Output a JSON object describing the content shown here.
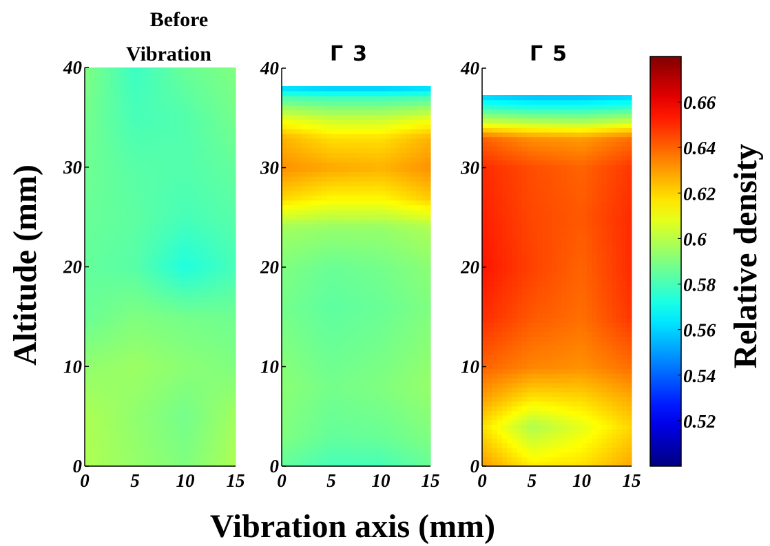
{
  "chart_data": {
    "type": "heatmap",
    "xlabel": "Vibration axis (mm)",
    "ylabel": "Altitude (mm)",
    "colorbar": {
      "label": "Relative density",
      "colormap": "jet",
      "range": [
        0.5,
        0.68
      ],
      "ticks": [
        "0.52",
        "0.54",
        "0.56",
        "0.58",
        "0.6",
        "0.62",
        "0.64",
        "0.66"
      ],
      "tick_values": [
        0.52,
        0.54,
        0.56,
        0.58,
        0.6,
        0.62,
        0.64,
        0.66
      ]
    },
    "panels": [
      {
        "title_lines": [
          "Before",
          "Vibration"
        ],
        "xlim": [
          0,
          15
        ],
        "ylim": [
          0,
          40
        ],
        "xticks": [
          "0",
          "5",
          "10",
          "15"
        ],
        "xtick_values": [
          0,
          5,
          10,
          15
        ],
        "yticks": [
          "0",
          "10",
          "20",
          "30",
          "40"
        ],
        "ytick_values": [
          0,
          10,
          20,
          30,
          40
        ],
        "fill_height": 40,
        "x": [
          0,
          5,
          10,
          15
        ],
        "y": [
          0,
          5,
          10,
          15,
          20,
          25,
          30,
          35,
          40
        ],
        "density": [
          [
            0.598,
            0.594,
            0.59,
            0.598
          ],
          [
            0.598,
            0.593,
            0.588,
            0.596
          ],
          [
            0.593,
            0.595,
            0.592,
            0.59
          ],
          [
            0.586,
            0.59,
            0.588,
            0.587
          ],
          [
            0.585,
            0.583,
            0.573,
            0.58
          ],
          [
            0.586,
            0.584,
            0.58,
            0.583
          ],
          [
            0.587,
            0.583,
            0.582,
            0.585
          ],
          [
            0.588,
            0.58,
            0.582,
            0.588
          ],
          [
            0.59,
            0.578,
            0.586,
            0.59
          ]
        ]
      },
      {
        "title_prefix": "Γ",
        "title_value": "3",
        "xlim": [
          0,
          15
        ],
        "ylim": [
          0,
          40
        ],
        "xticks": [
          "0",
          "5",
          "10",
          "15"
        ],
        "xtick_values": [
          0,
          5,
          10,
          15
        ],
        "yticks": [
          "0",
          "10",
          "20",
          "30",
          "40"
        ],
        "ytick_values": [
          0,
          10,
          20,
          30,
          40
        ],
        "fill_height": 38.2,
        "x": [
          0,
          5,
          10,
          15
        ],
        "y": [
          0,
          3,
          8,
          12,
          16,
          20,
          24,
          27,
          30,
          33,
          35,
          37,
          38.2
        ],
        "density": [
          [
            0.585,
            0.58,
            0.58,
            0.586
          ],
          [
            0.59,
            0.585,
            0.586,
            0.59
          ],
          [
            0.592,
            0.588,
            0.59,
            0.594
          ],
          [
            0.59,
            0.586,
            0.588,
            0.592
          ],
          [
            0.588,
            0.584,
            0.586,
            0.59
          ],
          [
            0.59,
            0.586,
            0.588,
            0.592
          ],
          [
            0.596,
            0.594,
            0.594,
            0.598
          ],
          [
            0.62,
            0.614,
            0.614,
            0.622
          ],
          [
            0.632,
            0.628,
            0.626,
            0.632
          ],
          [
            0.626,
            0.618,
            0.618,
            0.626
          ],
          [
            0.608,
            0.602,
            0.602,
            0.608
          ],
          [
            0.582,
            0.58,
            0.58,
            0.582
          ],
          [
            0.558,
            0.555,
            0.555,
            0.558
          ]
        ]
      },
      {
        "title_prefix": "Γ",
        "title_value": "5",
        "xlim": [
          0,
          15
        ],
        "ylim": [
          0,
          40
        ],
        "xticks": [
          "0",
          "5",
          "10",
          "15"
        ],
        "xtick_values": [
          0,
          5,
          10,
          15
        ],
        "yticks": [
          "0",
          "10",
          "20",
          "30",
          "40"
        ],
        "ytick_values": [
          0,
          10,
          20,
          30,
          40
        ],
        "fill_height": 37.3,
        "x": [
          0,
          5,
          10,
          15
        ],
        "y": [
          0,
          4,
          7,
          10,
          15,
          20,
          25,
          30,
          33,
          34.5,
          36,
          37.3
        ],
        "density": [
          [
            0.63,
            0.616,
            0.618,
            0.628
          ],
          [
            0.618,
            0.598,
            0.608,
            0.62
          ],
          [
            0.63,
            0.618,
            0.62,
            0.628
          ],
          [
            0.64,
            0.634,
            0.632,
            0.638
          ],
          [
            0.65,
            0.642,
            0.638,
            0.648
          ],
          [
            0.654,
            0.646,
            0.64,
            0.65
          ],
          [
            0.652,
            0.645,
            0.642,
            0.65
          ],
          [
            0.65,
            0.644,
            0.64,
            0.648
          ],
          [
            0.64,
            0.632,
            0.63,
            0.638
          ],
          [
            0.606,
            0.602,
            0.6,
            0.606
          ],
          [
            0.578,
            0.574,
            0.574,
            0.578
          ],
          [
            0.558,
            0.555,
            0.555,
            0.558
          ]
        ]
      }
    ]
  }
}
